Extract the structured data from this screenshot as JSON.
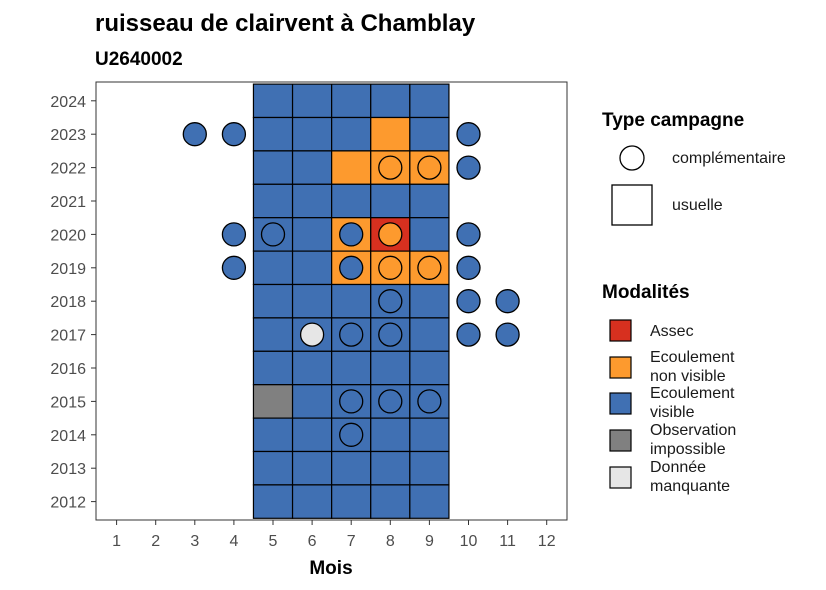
{
  "chart_data": {
    "type": "heatmap",
    "title": "ruisseau de clairvent à Chamblay",
    "subtitle": "U2640002",
    "xlabel": "Mois",
    "ylabel": "",
    "x_ticks": [
      1,
      2,
      3,
      4,
      5,
      6,
      7,
      8,
      9,
      10,
      11,
      12
    ],
    "y_ticks": [
      2012,
      2013,
      2014,
      2015,
      2016,
      2017,
      2018,
      2019,
      2020,
      2021,
      2022,
      2023,
      2024
    ],
    "xlim": [
      0.5,
      12.5
    ],
    "ylim": [
      2011.5,
      2024.5
    ],
    "modalities": [
      {
        "key": "assec",
        "label": "Assec",
        "color": "#d7301f"
      },
      {
        "key": "nonvisible",
        "label": "Ecoulement non visible",
        "color": "#fd9a2e"
      },
      {
        "key": "visible",
        "label": "Ecoulement visible",
        "color": "#4070b3"
      },
      {
        "key": "impossible",
        "label": "Observation impossible",
        "color": "#808080"
      },
      {
        "key": "manquante",
        "label": "Donnée manquante",
        "color": "#e6e6e6"
      }
    ],
    "campaign_types": [
      {
        "key": "complementaire",
        "label": "complémentaire",
        "shape": "circle"
      },
      {
        "key": "usuelle",
        "label": "usuelle",
        "shape": "square"
      }
    ],
    "usual_campaigns": [
      {
        "year": 2024,
        "month": 5,
        "modality": "visible"
      },
      {
        "year": 2024,
        "month": 6,
        "modality": "visible"
      },
      {
        "year": 2024,
        "month": 7,
        "modality": "visible"
      },
      {
        "year": 2024,
        "month": 8,
        "modality": "visible"
      },
      {
        "year": 2024,
        "month": 9,
        "modality": "visible"
      },
      {
        "year": 2023,
        "month": 5,
        "modality": "visible"
      },
      {
        "year": 2023,
        "month": 6,
        "modality": "visible"
      },
      {
        "year": 2023,
        "month": 7,
        "modality": "visible"
      },
      {
        "year": 2023,
        "month": 8,
        "modality": "nonvisible"
      },
      {
        "year": 2023,
        "month": 9,
        "modality": "visible"
      },
      {
        "year": 2022,
        "month": 5,
        "modality": "visible"
      },
      {
        "year": 2022,
        "month": 6,
        "modality": "visible"
      },
      {
        "year": 2022,
        "month": 7,
        "modality": "nonvisible"
      },
      {
        "year": 2022,
        "month": 8,
        "modality": "nonvisible"
      },
      {
        "year": 2022,
        "month": 9,
        "modality": "nonvisible"
      },
      {
        "year": 2021,
        "month": 5,
        "modality": "visible"
      },
      {
        "year": 2021,
        "month": 6,
        "modality": "visible"
      },
      {
        "year": 2021,
        "month": 7,
        "modality": "visible"
      },
      {
        "year": 2021,
        "month": 8,
        "modality": "visible"
      },
      {
        "year": 2021,
        "month": 9,
        "modality": "visible"
      },
      {
        "year": 2020,
        "month": 5,
        "modality": "visible"
      },
      {
        "year": 2020,
        "month": 6,
        "modality": "visible"
      },
      {
        "year": 2020,
        "month": 7,
        "modality": "nonvisible"
      },
      {
        "year": 2020,
        "month": 8,
        "modality": "assec"
      },
      {
        "year": 2020,
        "month": 9,
        "modality": "visible"
      },
      {
        "year": 2019,
        "month": 5,
        "modality": "visible"
      },
      {
        "year": 2019,
        "month": 6,
        "modality": "visible"
      },
      {
        "year": 2019,
        "month": 7,
        "modality": "nonvisible"
      },
      {
        "year": 2019,
        "month": 8,
        "modality": "nonvisible"
      },
      {
        "year": 2019,
        "month": 9,
        "modality": "nonvisible"
      },
      {
        "year": 2018,
        "month": 5,
        "modality": "visible"
      },
      {
        "year": 2018,
        "month": 6,
        "modality": "visible"
      },
      {
        "year": 2018,
        "month": 7,
        "modality": "visible"
      },
      {
        "year": 2018,
        "month": 8,
        "modality": "visible"
      },
      {
        "year": 2018,
        "month": 9,
        "modality": "visible"
      },
      {
        "year": 2017,
        "month": 5,
        "modality": "visible"
      },
      {
        "year": 2017,
        "month": 6,
        "modality": "visible"
      },
      {
        "year": 2017,
        "month": 7,
        "modality": "visible"
      },
      {
        "year": 2017,
        "month": 8,
        "modality": "visible"
      },
      {
        "year": 2017,
        "month": 9,
        "modality": "visible"
      },
      {
        "year": 2016,
        "month": 5,
        "modality": "visible"
      },
      {
        "year": 2016,
        "month": 6,
        "modality": "visible"
      },
      {
        "year": 2016,
        "month": 7,
        "modality": "visible"
      },
      {
        "year": 2016,
        "month": 8,
        "modality": "visible"
      },
      {
        "year": 2016,
        "month": 9,
        "modality": "visible"
      },
      {
        "year": 2015,
        "month": 5,
        "modality": "impossible"
      },
      {
        "year": 2015,
        "month": 6,
        "modality": "visible"
      },
      {
        "year": 2015,
        "month": 7,
        "modality": "visible"
      },
      {
        "year": 2015,
        "month": 8,
        "modality": "visible"
      },
      {
        "year": 2015,
        "month": 9,
        "modality": "visible"
      },
      {
        "year": 2014,
        "month": 5,
        "modality": "visible"
      },
      {
        "year": 2014,
        "month": 6,
        "modality": "visible"
      },
      {
        "year": 2014,
        "month": 7,
        "modality": "visible"
      },
      {
        "year": 2014,
        "month": 8,
        "modality": "visible"
      },
      {
        "year": 2014,
        "month": 9,
        "modality": "visible"
      },
      {
        "year": 2013,
        "month": 5,
        "modality": "visible"
      },
      {
        "year": 2013,
        "month": 6,
        "modality": "visible"
      },
      {
        "year": 2013,
        "month": 7,
        "modality": "visible"
      },
      {
        "year": 2013,
        "month": 8,
        "modality": "visible"
      },
      {
        "year": 2013,
        "month": 9,
        "modality": "visible"
      },
      {
        "year": 2012,
        "month": 5,
        "modality": "visible"
      },
      {
        "year": 2012,
        "month": 6,
        "modality": "visible"
      },
      {
        "year": 2012,
        "month": 7,
        "modality": "visible"
      },
      {
        "year": 2012,
        "month": 8,
        "modality": "visible"
      },
      {
        "year": 2012,
        "month": 9,
        "modality": "visible"
      }
    ],
    "complementary_campaigns": [
      {
        "year": 2023,
        "month": 3,
        "modality": "visible"
      },
      {
        "year": 2023,
        "month": 4,
        "modality": "visible"
      },
      {
        "year": 2023,
        "month": 10,
        "modality": "visible"
      },
      {
        "year": 2022,
        "month": 8,
        "modality": "nonvisible"
      },
      {
        "year": 2022,
        "month": 9,
        "modality": "nonvisible"
      },
      {
        "year": 2022,
        "month": 10,
        "modality": "visible"
      },
      {
        "year": 2020,
        "month": 4,
        "modality": "visible"
      },
      {
        "year": 2020,
        "month": 5,
        "modality": "visible"
      },
      {
        "year": 2020,
        "month": 7,
        "modality": "visible"
      },
      {
        "year": 2020,
        "month": 8,
        "modality": "nonvisible"
      },
      {
        "year": 2020,
        "month": 10,
        "modality": "visible"
      },
      {
        "year": 2019,
        "month": 4,
        "modality": "visible"
      },
      {
        "year": 2019,
        "month": 7,
        "modality": "visible"
      },
      {
        "year": 2019,
        "month": 8,
        "modality": "nonvisible"
      },
      {
        "year": 2019,
        "month": 9,
        "modality": "nonvisible"
      },
      {
        "year": 2019,
        "month": 10,
        "modality": "visible"
      },
      {
        "year": 2018,
        "month": 8,
        "modality": "visible"
      },
      {
        "year": 2018,
        "month": 10,
        "modality": "visible"
      },
      {
        "year": 2018,
        "month": 11,
        "modality": "visible"
      },
      {
        "year": 2017,
        "month": 6,
        "modality": "manquante"
      },
      {
        "year": 2017,
        "month": 7,
        "modality": "visible"
      },
      {
        "year": 2017,
        "month": 8,
        "modality": "visible"
      },
      {
        "year": 2017,
        "month": 10,
        "modality": "visible"
      },
      {
        "year": 2017,
        "month": 11,
        "modality": "visible"
      },
      {
        "year": 2015,
        "month": 7,
        "modality": "visible"
      },
      {
        "year": 2015,
        "month": 8,
        "modality": "visible"
      },
      {
        "year": 2015,
        "month": 9,
        "modality": "visible"
      },
      {
        "year": 2014,
        "month": 7,
        "modality": "visible"
      }
    ]
  },
  "legend": {
    "campaign_title": "Type campagne",
    "modality_title": "Modalités",
    "complementaire_label": "complémentaire",
    "usuelle_label": "usuelle",
    "modalities": [
      {
        "lines": [
          "Assec"
        ],
        "color": "#d7301f"
      },
      {
        "lines": [
          "Ecoulement",
          "non visible"
        ],
        "color": "#fd9a2e"
      },
      {
        "lines": [
          "Ecoulement",
          "visible"
        ],
        "color": "#4070b3"
      },
      {
        "lines": [
          "Observation",
          "impossible"
        ],
        "color": "#808080"
      },
      {
        "lines": [
          "Donnée",
          "manquante"
        ],
        "color": "#e6e6e6"
      }
    ]
  }
}
